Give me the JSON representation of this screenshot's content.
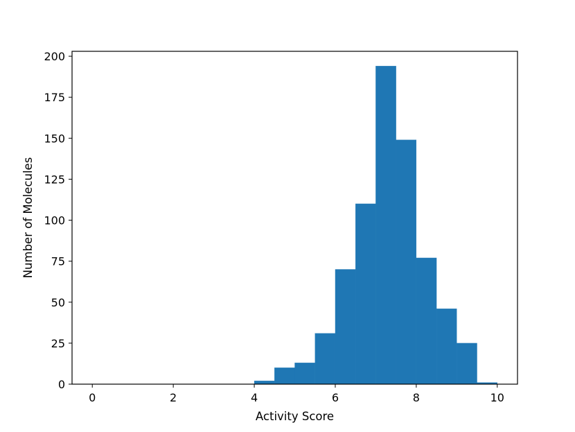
{
  "chart_data": {
    "type": "bar",
    "title": "",
    "xlabel": "Activity Score",
    "ylabel": "Number of Molecules",
    "xlim": [
      -0.5,
      10.5
    ],
    "ylim": [
      0,
      203
    ],
    "xticks": [
      0,
      2,
      4,
      6,
      8,
      10
    ],
    "yticks": [
      0,
      25,
      50,
      75,
      100,
      125,
      150,
      175,
      200
    ],
    "grid": false,
    "bar_color": "#1f77b4",
    "bins": [
      {
        "x0": 4.0,
        "x1": 4.5,
        "count": 2
      },
      {
        "x0": 4.5,
        "x1": 5.0,
        "count": 10
      },
      {
        "x0": 5.0,
        "x1": 5.5,
        "count": 13
      },
      {
        "x0": 5.5,
        "x1": 6.0,
        "count": 31
      },
      {
        "x0": 6.0,
        "x1": 6.5,
        "count": 70
      },
      {
        "x0": 6.5,
        "x1": 7.0,
        "count": 110
      },
      {
        "x0": 7.0,
        "x1": 7.5,
        "count": 194
      },
      {
        "x0": 7.5,
        "x1": 8.0,
        "count": 149
      },
      {
        "x0": 8.0,
        "x1": 8.5,
        "count": 77
      },
      {
        "x0": 8.5,
        "x1": 9.0,
        "count": 46
      },
      {
        "x0": 9.0,
        "x1": 9.5,
        "count": 25
      },
      {
        "x0": 9.5,
        "x1": 10.0,
        "count": 1
      }
    ]
  }
}
